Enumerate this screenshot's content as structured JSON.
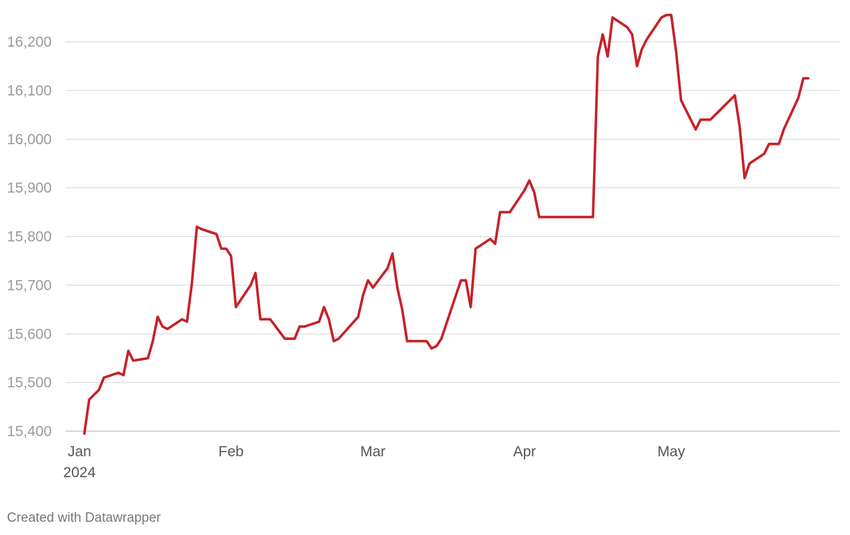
{
  "chart_data": {
    "type": "line",
    "title": "",
    "xlabel": "",
    "ylabel": "",
    "ylim": [
      15400,
      16250
    ],
    "y_ticks": [
      15400,
      15500,
      15600,
      15700,
      15800,
      15900,
      16000,
      16100,
      16200
    ],
    "y_tick_labels": [
      "15,400",
      "15,500",
      "15,600",
      "15,700",
      "15,800",
      "15,900",
      "16,000",
      "16,100",
      "16,200"
    ],
    "x_ticks": [
      {
        "date": "2024-01-01",
        "label": "Jan",
        "sublabel": "2024"
      },
      {
        "date": "2024-02-01",
        "label": "Feb",
        "sublabel": ""
      },
      {
        "date": "2024-03-01",
        "label": "Mar",
        "sublabel": ""
      },
      {
        "date": "2024-04-01",
        "label": "Apr",
        "sublabel": ""
      },
      {
        "date": "2024-05-01",
        "label": "May",
        "sublabel": ""
      }
    ],
    "grid": true,
    "line_color": "#c62127",
    "series": [
      {
        "x": [
          "2024-01-02",
          "2024-01-03",
          "2024-01-05",
          "2024-01-06",
          "2024-01-09",
          "2024-01-10",
          "2024-01-11",
          "2024-01-12",
          "2024-01-15",
          "2024-01-16",
          "2024-01-17",
          "2024-01-18",
          "2024-01-19",
          "2024-01-22",
          "2024-01-23",
          "2024-01-24",
          "2024-01-25",
          "2024-01-26",
          "2024-01-29",
          "2024-01-30",
          "2024-01-31",
          "2024-02-01",
          "2024-02-02",
          "2024-02-05",
          "2024-02-06",
          "2024-02-07",
          "2024-02-09",
          "2024-02-12",
          "2024-02-14",
          "2024-02-15",
          "2024-02-16",
          "2024-02-19",
          "2024-02-20",
          "2024-02-21",
          "2024-02-22",
          "2024-02-23",
          "2024-02-27",
          "2024-02-28",
          "2024-02-29",
          "2024-03-01",
          "2024-03-04",
          "2024-03-05",
          "2024-03-06",
          "2024-03-07",
          "2024-03-08",
          "2024-03-12",
          "2024-03-13",
          "2024-03-14",
          "2024-03-15",
          "2024-03-18",
          "2024-03-19",
          "2024-03-20",
          "2024-03-21",
          "2024-03-22",
          "2024-03-25",
          "2024-03-26",
          "2024-03-27",
          "2024-03-29",
          "2024-04-01",
          "2024-04-02",
          "2024-04-03",
          "2024-04-04",
          "2024-04-05",
          "2024-04-15",
          "2024-04-16",
          "2024-04-17",
          "2024-04-18",
          "2024-04-19",
          "2024-04-22",
          "2024-04-23",
          "2024-04-24",
          "2024-04-25",
          "2024-04-26",
          "2024-04-29",
          "2024-04-30",
          "2024-05-01",
          "2024-05-02",
          "2024-05-03",
          "2024-05-06",
          "2024-05-07",
          "2024-05-08",
          "2024-05-09",
          "2024-05-13",
          "2024-05-14",
          "2024-05-15",
          "2024-05-16",
          "2024-05-17",
          "2024-05-20",
          "2024-05-21",
          "2024-05-22",
          "2024-05-23",
          "2024-05-24",
          "2024-05-27",
          "2024-05-28",
          "2024-05-29"
        ],
        "values": [
          15395,
          15465,
          15485,
          15510,
          15520,
          15515,
          15565,
          15545,
          15550,
          15585,
          15635,
          15615,
          15610,
          15630,
          15625,
          15705,
          15820,
          15815,
          15805,
          15775,
          15775,
          15760,
          15655,
          15700,
          15725,
          15630,
          15630,
          15590,
          15590,
          15615,
          15615,
          15625,
          15655,
          15630,
          15585,
          15590,
          15635,
          15680,
          15710,
          15695,
          15735,
          15765,
          15695,
          15650,
          15585,
          15585,
          15570,
          15575,
          15590,
          15680,
          15710,
          15710,
          15655,
          15775,
          15795,
          15785,
          15850,
          15850,
          15895,
          15915,
          15890,
          15840,
          15840,
          15840,
          16170,
          16215,
          16170,
          16250,
          16230,
          16215,
          16150,
          16185,
          16205,
          16250,
          16255,
          16255,
          16180,
          16080,
          16020,
          16040,
          16040,
          16040,
          16080,
          16090,
          16025,
          15920,
          15950,
          15970,
          15990,
          15990,
          15990,
          16020,
          16085,
          16125,
          16125
        ]
      }
    ]
  },
  "footer": "Created with Datawrapper"
}
